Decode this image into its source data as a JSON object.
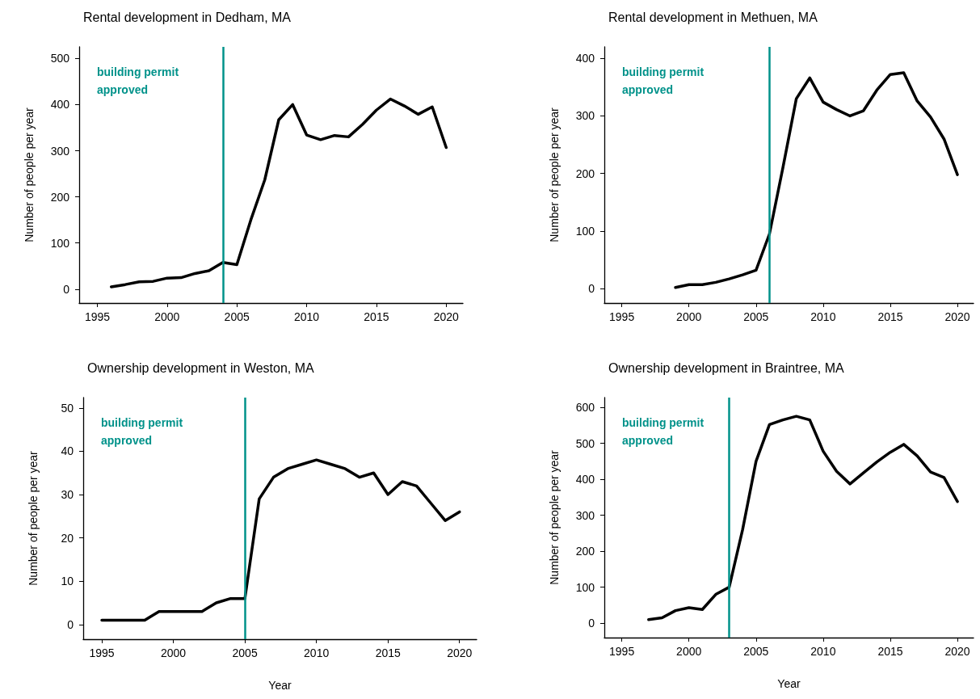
{
  "chart_data": [
    {
      "type": "line",
      "title": "Rental development in Dedham, MA",
      "ylabel": "Number of people per year",
      "x": [
        1996,
        1997,
        1998,
        1999,
        2000,
        2001,
        2002,
        2003,
        2004,
        2005,
        2006,
        2007,
        2008,
        2009,
        2010,
        2011,
        2012,
        2013,
        2014,
        2015,
        2016,
        2017,
        2018,
        2019,
        2020
      ],
      "series": [
        {
          "color": "#000000",
          "values": [
            5,
            10,
            16,
            17,
            24,
            25,
            34,
            40,
            58,
            53,
            150,
            237,
            367,
            400,
            334,
            324,
            333,
            330,
            357,
            388,
            412,
            397,
            379,
            395,
            307
          ]
        }
      ],
      "xlim": [
        1993.7,
        2021.2
      ],
      "xticks": [
        1995,
        2000,
        2005,
        2010,
        2015,
        2020
      ],
      "ylim": [
        -30,
        525
      ],
      "yticks": [
        0,
        100,
        200,
        300,
        400,
        500
      ],
      "grid": false,
      "marker": "none",
      "line_style": "solid",
      "ref_lines": [
        {
          "axis": "x",
          "value": 2004,
          "label": "building permit approved",
          "color": "#00928a"
        }
      ]
    },
    {
      "type": "line",
      "title": "Rental development in Methuen, MA",
      "ylabel": "Number of people per year",
      "x": [
        1999,
        2000,
        2001,
        2002,
        2003,
        2004,
        2005,
        2006,
        2007,
        2008,
        2009,
        2010,
        2011,
        2012,
        2013,
        2014,
        2015,
        2016,
        2017,
        2018,
        2019,
        2020
      ],
      "series": [
        {
          "color": "#000000",
          "values": [
            2,
            7,
            7,
            11,
            17,
            24,
            32,
            95,
            210,
            330,
            366,
            324,
            311,
            300,
            309,
            345,
            372,
            375,
            326,
            298,
            260,
            198
          ]
        }
      ],
      "xlim": [
        1993.7,
        2021.2
      ],
      "xticks": [
        1995,
        2000,
        2005,
        2010,
        2015,
        2020
      ],
      "ylim": [
        -25,
        420
      ],
      "yticks": [
        0,
        100,
        200,
        300,
        400
      ],
      "grid": false,
      "marker": "none",
      "line_style": "solid",
      "ref_lines": [
        {
          "axis": "x",
          "value": 2006,
          "label": "building permit approved",
          "color": "#00928a"
        }
      ]
    },
    {
      "type": "line",
      "title": "Ownership development in Weston, MA",
      "xlabel": "Year",
      "ylabel": "Number of people per year",
      "x": [
        1995,
        1996,
        1997,
        1998,
        1999,
        2000,
        2001,
        2002,
        2003,
        2004,
        2005,
        2006,
        2007,
        2008,
        2009,
        2010,
        2011,
        2012,
        2013,
        2014,
        2015,
        2016,
        2017,
        2018,
        2019,
        2020
      ],
      "series": [
        {
          "color": "#000000",
          "values": [
            1,
            1,
            1,
            1,
            3,
            3,
            3,
            3,
            5,
            6,
            6,
            29,
            34,
            36,
            37,
            38,
            37,
            36,
            34,
            35,
            30,
            33,
            32,
            28,
            24,
            26
          ]
        }
      ],
      "xlim": [
        1993.7,
        2021.2
      ],
      "xticks": [
        1995,
        2000,
        2005,
        2010,
        2015,
        2020
      ],
      "ylim": [
        -3.4,
        52.4
      ],
      "yticks": [
        0,
        10,
        20,
        30,
        40,
        50
      ],
      "grid": false,
      "marker": "none",
      "line_style": "solid",
      "ref_lines": [
        {
          "axis": "x",
          "value": 2005,
          "label": "building permit approved",
          "color": "#00928a"
        }
      ]
    },
    {
      "type": "line",
      "title": "Ownership development in Braintree, MA",
      "xlabel": "Year",
      "ylabel": "Number of people per year",
      "x": [
        1997,
        1998,
        1999,
        2000,
        2001,
        2002,
        2003,
        2004,
        2005,
        2006,
        2007,
        2008,
        2009,
        2010,
        2011,
        2012,
        2013,
        2014,
        2015,
        2016,
        2017,
        2018,
        2019,
        2020
      ],
      "series": [
        {
          "color": "#000000",
          "values": [
            10,
            15,
            35,
            43,
            38,
            80,
            100,
            260,
            450,
            552,
            565,
            575,
            565,
            478,
            422,
            387,
            418,
            448,
            475,
            497,
            465,
            420,
            405,
            338
          ]
        }
      ],
      "xlim": [
        1993.7,
        2021.2
      ],
      "xticks": [
        1995,
        2000,
        2005,
        2010,
        2015,
        2020
      ],
      "ylim": [
        -40,
        627
      ],
      "yticks": [
        0,
        100,
        200,
        300,
        400,
        500,
        600
      ],
      "grid": false,
      "marker": "none",
      "line_style": "solid",
      "ref_lines": [
        {
          "axis": "x",
          "value": 2003,
          "label": "building permit approved",
          "color": "#00928a"
        }
      ]
    }
  ]
}
